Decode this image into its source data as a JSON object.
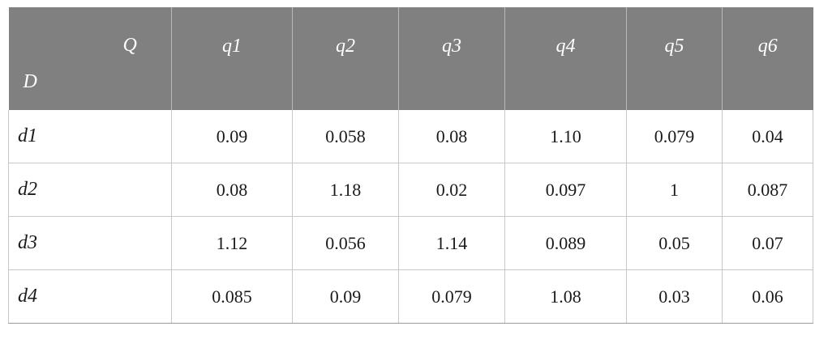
{
  "header": {
    "corner_top": "Q",
    "corner_bottom": "D",
    "columns": [
      "q1",
      "q2",
      "q3",
      "q4",
      "q5",
      "q6"
    ]
  },
  "rows": [
    {
      "label": "d1",
      "values": [
        "0.09",
        "0.058",
        "0.08",
        "1.10",
        "0.079",
        "0.04"
      ]
    },
    {
      "label": "d2",
      "values": [
        "0.08",
        "1.18",
        "0.02",
        "0.097",
        "1",
        "0.087"
      ]
    },
    {
      "label": "d3",
      "values": [
        "1.12",
        "0.056",
        "1.14",
        "0.089",
        "0.05",
        "0.07"
      ]
    },
    {
      "label": "d4",
      "values": [
        "0.085",
        "0.09",
        "0.079",
        "1.08",
        "0.03",
        "0.06"
      ]
    }
  ],
  "colors": {
    "header_bg": "#808080",
    "header_text": "#ffffff",
    "grid": "#c8c8c8"
  }
}
